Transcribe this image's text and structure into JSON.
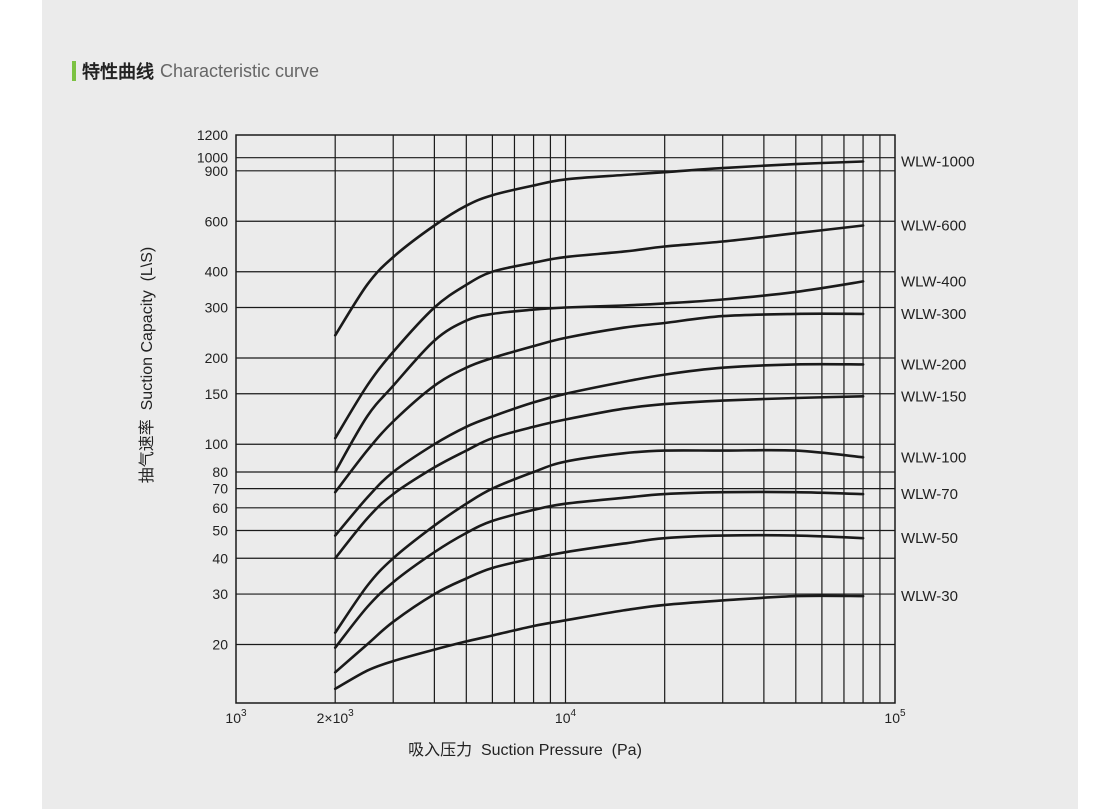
{
  "header": {
    "title_zh": "特性曲线",
    "title_en": "Characteristic curve",
    "accent_color": "#7cc242"
  },
  "chart_data": {
    "type": "line",
    "x_scale": "log",
    "y_scale": "log",
    "xlim": [
      1000,
      100000
    ],
    "ylim": [
      12.5,
      1200
    ],
    "xlabel": "吸入压力  Suction Pressure  (Pa)",
    "ylabel": "抽气速率  Suction Capacity  (L\\S)",
    "x_ticks": [
      {
        "value": 1000,
        "base": "10",
        "exp": "3"
      },
      {
        "value": 2000,
        "base": "2×10",
        "exp": "3"
      },
      {
        "value": 10000,
        "base": "10",
        "exp": "4"
      },
      {
        "value": 100000,
        "base": "10",
        "exp": "5"
      }
    ],
    "y_ticks": [
      20,
      30,
      40,
      50,
      60,
      70,
      80,
      100,
      150,
      200,
      300,
      400,
      600,
      900,
      1000,
      1200
    ],
    "grid": true,
    "line_color": "#1a1a1a",
    "series": [
      {
        "name": "WLW-1000",
        "x": [
          2000,
          2500,
          3000,
          4000,
          5000,
          6000,
          8000,
          10000,
          15000,
          20000,
          30000,
          50000,
          80000
        ],
        "y": [
          240,
          360,
          450,
          580,
          680,
          740,
          800,
          840,
          870,
          890,
          920,
          950,
          970
        ]
      },
      {
        "name": "WLW-600",
        "x": [
          2000,
          2500,
          3000,
          4000,
          5000,
          6000,
          8000,
          10000,
          15000,
          20000,
          30000,
          50000,
          80000
        ],
        "y": [
          105,
          160,
          210,
          300,
          360,
          400,
          430,
          450,
          470,
          490,
          510,
          545,
          580
        ]
      },
      {
        "name": "WLW-400",
        "x": [
          2000,
          2500,
          3000,
          4000,
          5000,
          6000,
          8000,
          10000,
          15000,
          20000,
          30000,
          50000,
          80000
        ],
        "y": [
          80,
          125,
          160,
          230,
          270,
          285,
          295,
          300,
          305,
          310,
          320,
          340,
          370
        ]
      },
      {
        "name": "WLW-300",
        "x": [
          2000,
          2500,
          3000,
          4000,
          5000,
          6000,
          8000,
          10000,
          15000,
          20000,
          30000,
          50000,
          80000
        ],
        "y": [
          68,
          95,
          120,
          160,
          185,
          200,
          220,
          235,
          255,
          265,
          280,
          285,
          285
        ]
      },
      {
        "name": "WLW-200",
        "x": [
          2000,
          2500,
          3000,
          4000,
          5000,
          6000,
          8000,
          10000,
          15000,
          20000,
          30000,
          50000,
          80000
        ],
        "y": [
          48,
          65,
          80,
          100,
          115,
          125,
          140,
          150,
          165,
          175,
          185,
          190,
          190
        ]
      },
      {
        "name": "WLW-150",
        "x": [
          2000,
          2500,
          3000,
          4000,
          5000,
          6000,
          8000,
          10000,
          15000,
          20000,
          30000,
          50000,
          80000
        ],
        "y": [
          40,
          55,
          67,
          83,
          95,
          105,
          115,
          122,
          133,
          138,
          142,
          145,
          147
        ]
      },
      {
        "name": "WLW-100",
        "x": [
          2000,
          2500,
          3000,
          4000,
          5000,
          6000,
          8000,
          10000,
          15000,
          20000,
          30000,
          50000,
          80000
        ],
        "y": [
          22,
          32,
          40,
          52,
          62,
          70,
          80,
          87,
          93,
          95,
          95,
          95,
          90
        ]
      },
      {
        "name": "WLW-70",
        "x": [
          2000,
          2500,
          3000,
          4000,
          5000,
          6000,
          8000,
          10000,
          15000,
          20000,
          30000,
          50000,
          80000
        ],
        "y": [
          19.5,
          27,
          33,
          42,
          49,
          54,
          59,
          62,
          65,
          67,
          68,
          68,
          67
        ]
      },
      {
        "name": "WLW-50",
        "x": [
          2000,
          2500,
          3000,
          4000,
          5000,
          6000,
          8000,
          10000,
          15000,
          20000,
          30000,
          50000,
          80000
        ],
        "y": [
          16,
          20,
          24,
          30,
          34,
          37,
          40,
          42,
          45,
          47,
          48,
          48,
          47
        ]
      },
      {
        "name": "WLW-30",
        "x": [
          2000,
          2500,
          3000,
          4000,
          5000,
          6000,
          8000,
          10000,
          15000,
          20000,
          30000,
          50000,
          80000
        ],
        "y": [
          14,
          16.2,
          17.5,
          19.2,
          20.5,
          21.5,
          23.2,
          24.3,
          26.3,
          27.5,
          28.5,
          29.5,
          29.5
        ]
      }
    ]
  }
}
